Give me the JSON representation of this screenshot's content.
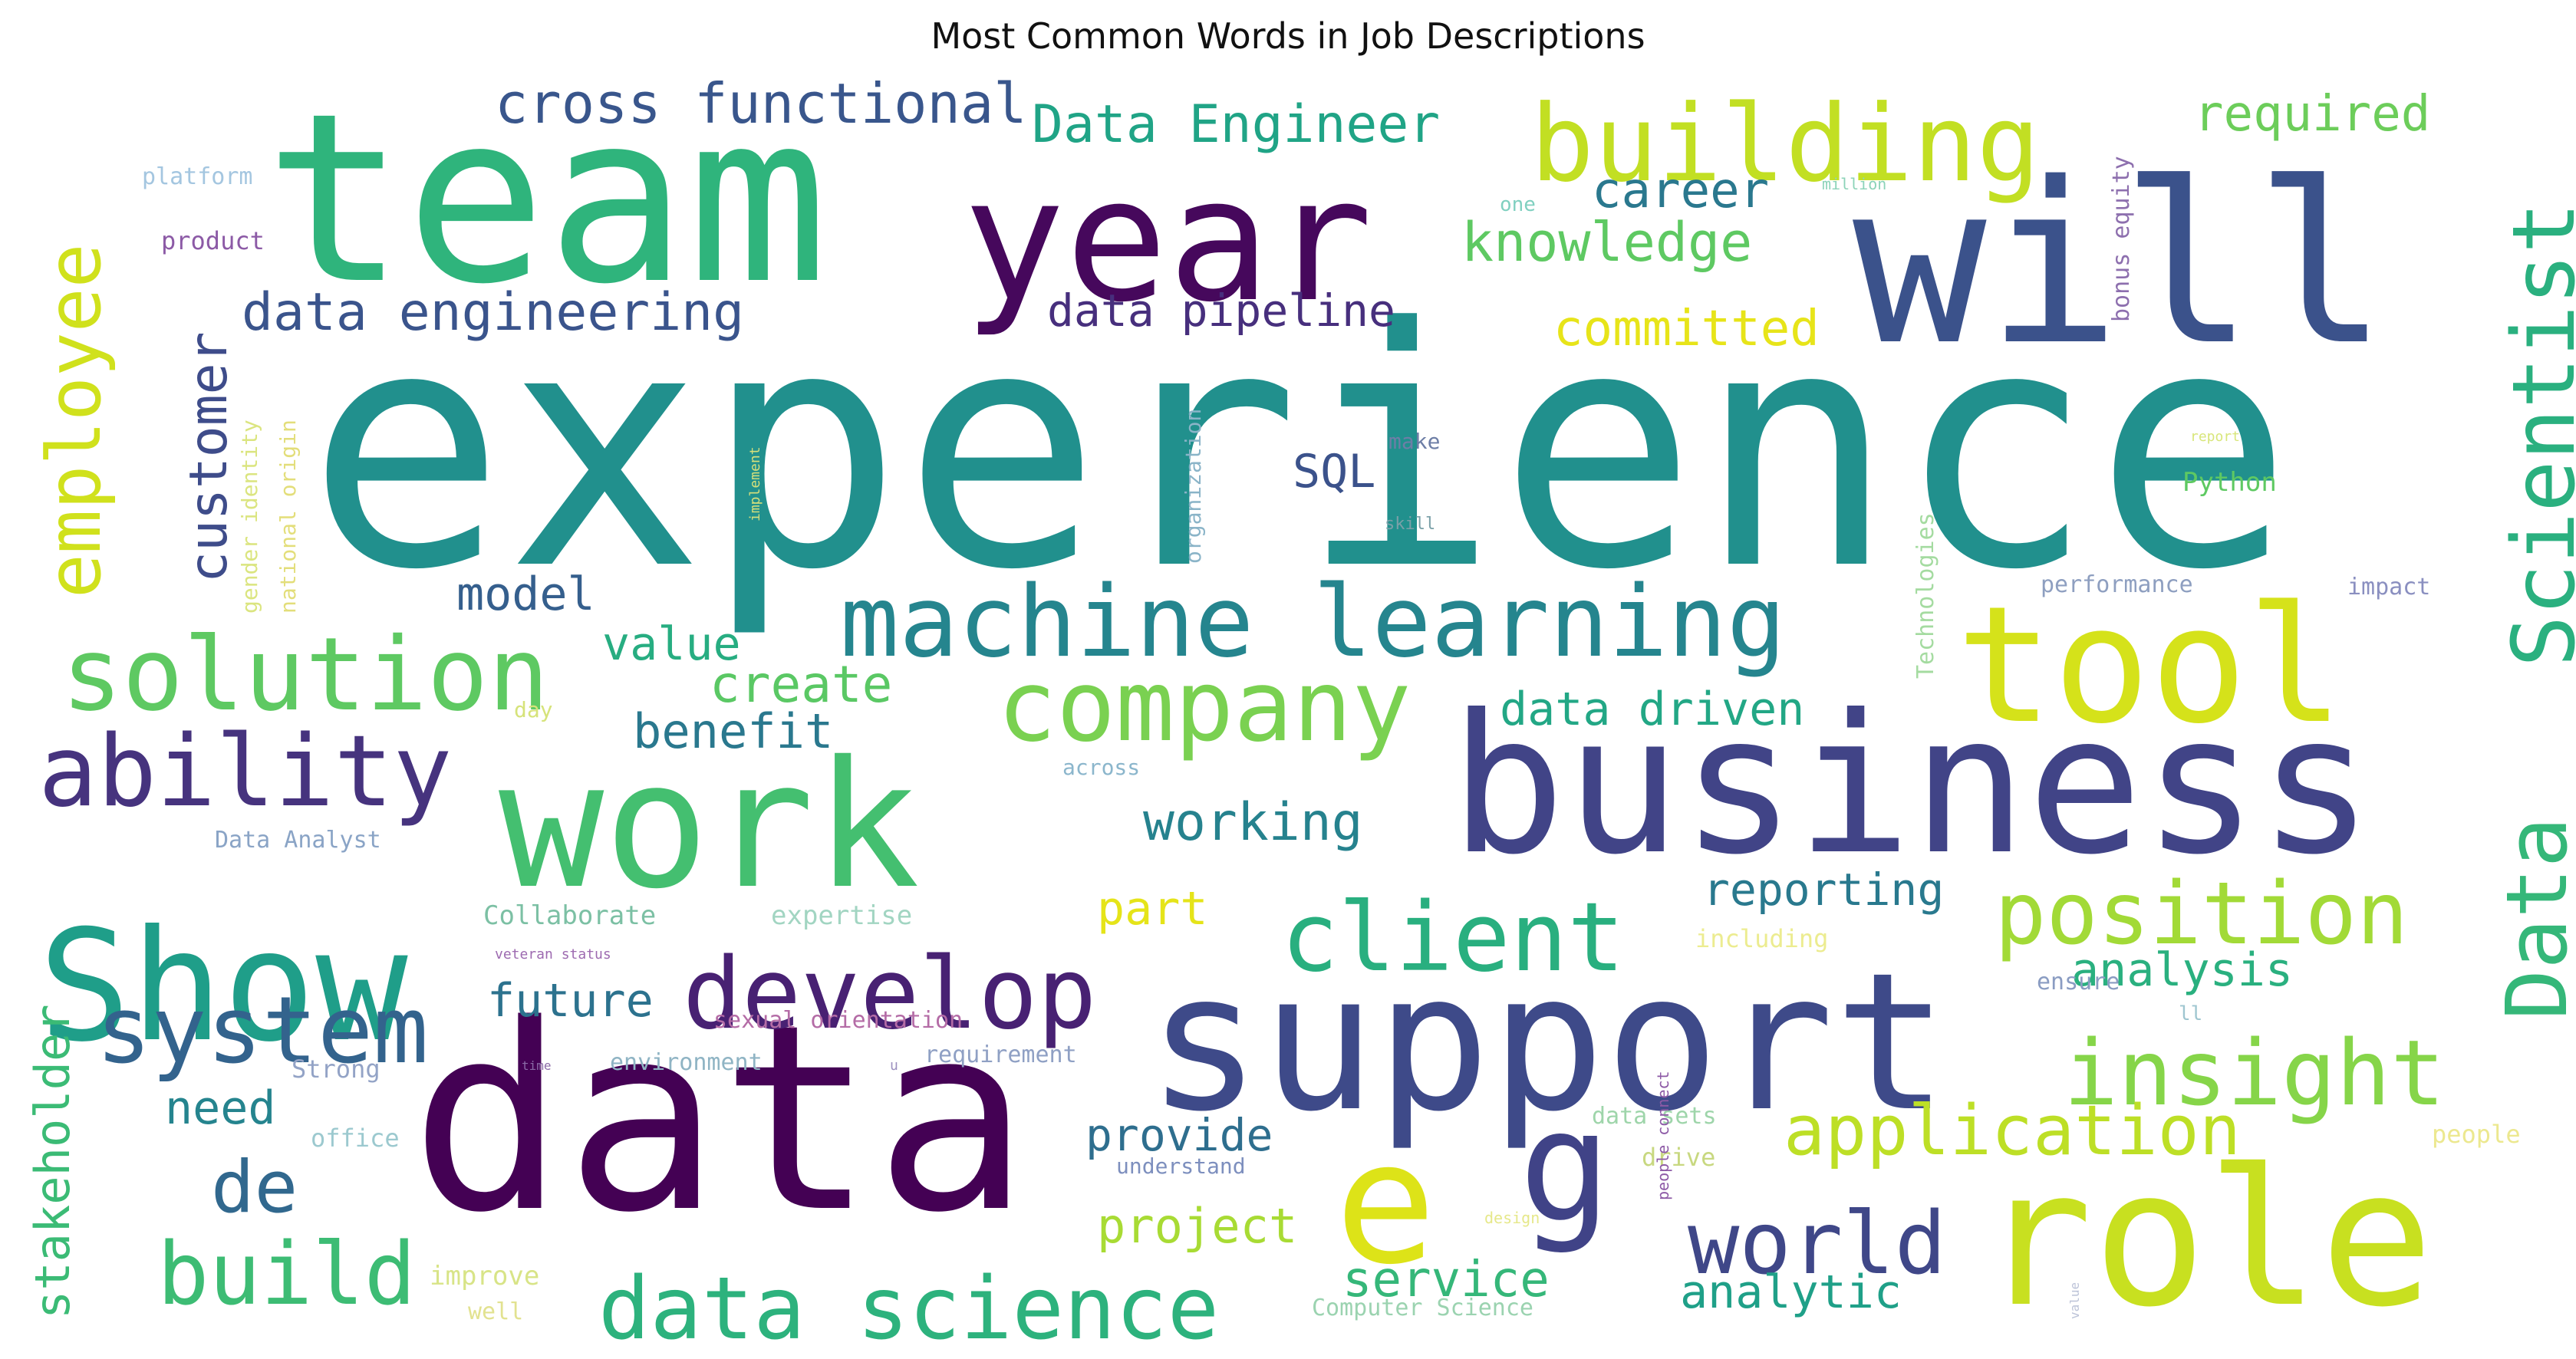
{
  "chart_data": {
    "type": "wordcloud",
    "title": "Most Common Words in Job Descriptions",
    "colormap": "viridis",
    "words": [
      {
        "text": "experience",
        "color": "#21908d"
      },
      {
        "text": "data",
        "color": "#440154"
      },
      {
        "text": "team",
        "color": "#2fb47c"
      },
      {
        "text": "will",
        "color": "#3b528b"
      },
      {
        "text": "business",
        "color": "#414487"
      },
      {
        "text": "support",
        "color": "#3e4a89"
      },
      {
        "text": "role",
        "color": "#c8e020"
      },
      {
        "text": "work",
        "color": "#44bf70"
      },
      {
        "text": "year",
        "color": "#46085c"
      },
      {
        "text": "Show",
        "color": "#1f9e89"
      },
      {
        "text": "tool",
        "color": "#d5e21a"
      },
      {
        "text": "e",
        "color": "#dde318"
      },
      {
        "text": "g",
        "color": "#404387"
      },
      {
        "text": "building",
        "color": "#c2df23"
      },
      {
        "text": "machine learning",
        "color": "#25858e"
      },
      {
        "text": "Scientist",
        "color": "#2ab07f"
      },
      {
        "text": "solution",
        "color": "#5ec962"
      },
      {
        "text": "ability",
        "color": "#46337e"
      },
      {
        "text": "develop",
        "color": "#482173"
      },
      {
        "text": "company",
        "color": "#7ad151"
      },
      {
        "text": "client",
        "color": "#29af7f"
      },
      {
        "text": "position",
        "color": "#a2da37"
      },
      {
        "text": "Data",
        "color": "#35b779"
      },
      {
        "text": "insight",
        "color": "#86d549"
      },
      {
        "text": "system",
        "color": "#33638d"
      },
      {
        "text": "world",
        "color": "#3f4788"
      },
      {
        "text": "data science",
        "color": "#2db27d"
      },
      {
        "text": "build",
        "color": "#3dbc74"
      },
      {
        "text": "employee",
        "color": "#d0e11c"
      },
      {
        "text": "application",
        "color": "#bddf26"
      },
      {
        "text": "de",
        "color": "#31688e"
      },
      {
        "text": "customer",
        "color": "#3e4c8a"
      },
      {
        "text": "cross functional",
        "color": "#39568c"
      },
      {
        "text": "Data Engineer",
        "color": "#20a486"
      },
      {
        "text": "required",
        "color": "#6ccd5a"
      },
      {
        "text": "career",
        "color": "#2a788e"
      },
      {
        "text": "knowledge",
        "color": "#5ec962"
      },
      {
        "text": "data engineering",
        "color": "#3a548c"
      },
      {
        "text": "data pipeline",
        "color": "#472f7d"
      },
      {
        "text": "committed",
        "color": "#e7e419"
      },
      {
        "text": "SQL",
        "color": "#3b528b"
      },
      {
        "text": "model",
        "color": "#355f8d"
      },
      {
        "text": "value",
        "color": "#27ad81"
      },
      {
        "text": "create",
        "color": "#5ac864"
      },
      {
        "text": "benefit",
        "color": "#2a788e"
      },
      {
        "text": "data driven",
        "color": "#22a785"
      },
      {
        "text": "working",
        "color": "#26828e"
      },
      {
        "text": "reporting",
        "color": "#29798e"
      },
      {
        "text": "analysis",
        "color": "#2ab07f"
      },
      {
        "text": "future",
        "color": "#2c728e"
      },
      {
        "text": "part",
        "color": "#e5e419"
      },
      {
        "text": "need",
        "color": "#25848e"
      },
      {
        "text": "provide",
        "color": "#2e6e8e"
      },
      {
        "text": "project",
        "color": "#a8db34"
      },
      {
        "text": "service",
        "color": "#35b779"
      },
      {
        "text": "analytic",
        "color": "#1fa088"
      },
      {
        "text": "stakeholder",
        "color": "#3bbb75"
      },
      {
        "text": "Python",
        "color": "#5ec962"
      },
      {
        "text": "performance",
        "color": "#8e9fc0"
      },
      {
        "text": "impact",
        "color": "#8a8fc0"
      },
      {
        "text": "platform",
        "color": "#a4c6e0"
      },
      {
        "text": "product",
        "color": "#8c5aa6"
      },
      {
        "text": "one",
        "color": "#80d0c0"
      },
      {
        "text": "million",
        "color": "#8cd3b8"
      },
      {
        "text": "bonus equity",
        "color": "#8d6fae"
      },
      {
        "text": "gender identity",
        "color": "#dbe580"
      },
      {
        "text": "national origin",
        "color": "#e3de7a"
      },
      {
        "text": "organization",
        "color": "#8ab4c8"
      },
      {
        "text": "make",
        "color": "#6d7ea6"
      },
      {
        "text": "implement",
        "color": "#d7e07a"
      },
      {
        "text": "skill",
        "color": "#7aa0a8"
      },
      {
        "text": "report",
        "color": "#d8e67a"
      },
      {
        "text": "Technologies",
        "color": "#a4dba0"
      },
      {
        "text": "across",
        "color": "#8bb6cc"
      },
      {
        "text": "day",
        "color": "#d6e37a"
      },
      {
        "text": "Data Analyst",
        "color": "#8aa4c6"
      },
      {
        "text": "Collaborate",
        "color": "#7cc0a4"
      },
      {
        "text": "expertise",
        "color": "#a2d5c2"
      },
      {
        "text": "veteran status",
        "color": "#9d6ab0"
      },
      {
        "text": "including",
        "color": "#ecec90"
      },
      {
        "text": "sexual orientation",
        "color": "#b46ca6"
      },
      {
        "text": "environment",
        "color": "#8fb4c4"
      },
      {
        "text": "requirement",
        "color": "#8fa0c4"
      },
      {
        "text": "Strong",
        "color": "#93a3c6"
      },
      {
        "text": "time",
        "color": "#8a6aa6"
      },
      {
        "text": "office",
        "color": "#9cc9cf"
      },
      {
        "text": "understand",
        "color": "#7d8fbe"
      },
      {
        "text": "data sets",
        "color": "#9ed5aa"
      },
      {
        "text": "drive",
        "color": "#c8d880"
      },
      {
        "text": "people connect",
        "color": "#8d5aa6"
      },
      {
        "text": "design",
        "color": "#e6e88a"
      },
      {
        "text": "people",
        "color": "#ece88f"
      },
      {
        "text": "ensure",
        "color": "#8a9cc2"
      },
      {
        "text": "ll",
        "color": "#9fc6d0"
      },
      {
        "text": "improve",
        "color": "#d8e487"
      },
      {
        "text": "well",
        "color": "#e2e290"
      },
      {
        "text": "Computer Science",
        "color": "#9bd3b0"
      },
      {
        "text": "value",
        "color": "#bcc3d8"
      },
      {
        "text": "u",
        "color": "#9c90bf"
      }
    ]
  }
}
